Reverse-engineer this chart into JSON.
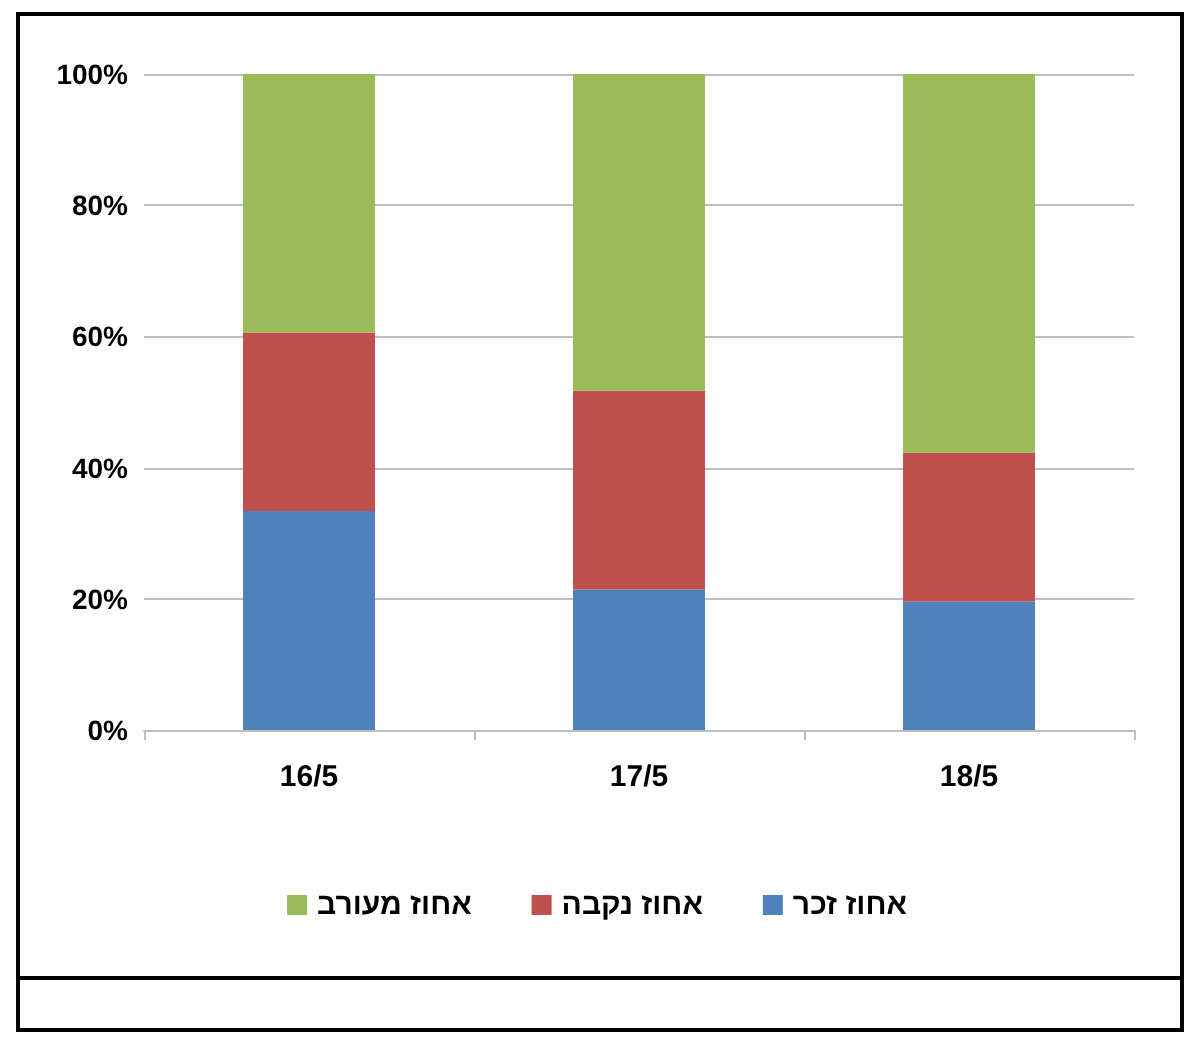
{
  "chart_data": {
    "type": "bar",
    "stacked": true,
    "categories": [
      "16/5",
      "17/5",
      "18/5"
    ],
    "series": [
      {
        "name": "אחוז זכר",
        "color": "#4f81bd",
        "values": [
          33.4,
          21.4,
          19.6
        ]
      },
      {
        "name": "אחוז נקבה",
        "color": "#c0504d",
        "values": [
          27.2,
          30.3,
          22.7
        ]
      },
      {
        "name": "אחוז מעורב",
        "color": "#9bbb59",
        "values": [
          39.4,
          48.3,
          57.7
        ]
      }
    ],
    "ylim": [
      0,
      100
    ],
    "yticks": [
      {
        "value": 0,
        "label": "0%"
      },
      {
        "value": 20,
        "label": "20%"
      },
      {
        "value": 40,
        "label": "40%"
      },
      {
        "value": 60,
        "label": "60%"
      },
      {
        "value": 80,
        "label": "80%"
      },
      {
        "value": 100,
        "label": "100%"
      }
    ],
    "grid": "y",
    "legend": "bottom"
  }
}
